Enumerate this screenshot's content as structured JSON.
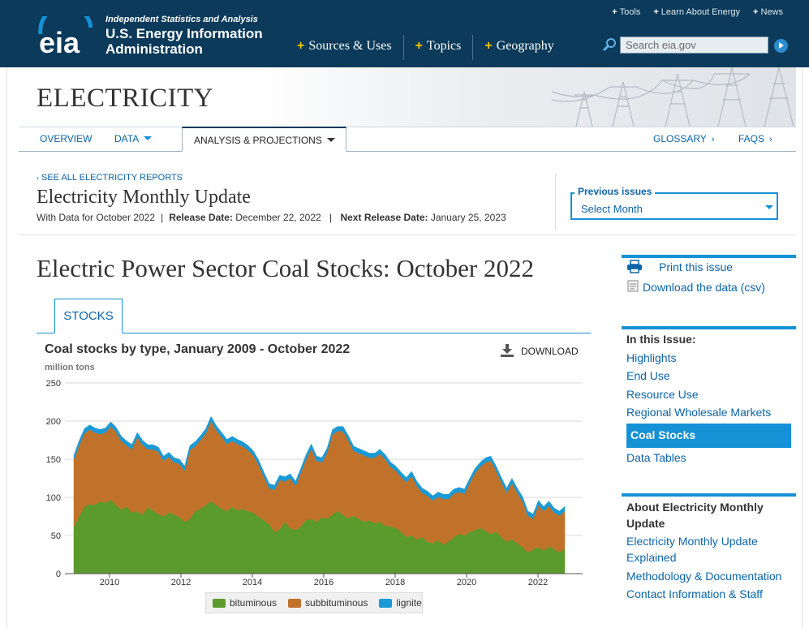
{
  "header": {
    "tagline": "Independent Statistics and Analysis",
    "org_line1": "U.S. Energy Information",
    "org_line2": "Administration",
    "logo_text": "eia",
    "util_links": [
      "Tools",
      "Learn About Energy",
      "News"
    ],
    "main_nav": [
      "Sources & Uses",
      "Topics",
      "Geography"
    ],
    "search_placeholder": "Search eia.gov"
  },
  "section": {
    "title": "ELECTRICITY",
    "subnav": {
      "overview": "OVERVIEW",
      "data": "DATA",
      "analysis": "ANALYSIS & PROJECTIONS",
      "glossary": "GLOSSARY",
      "faqs": "FAQS"
    }
  },
  "report": {
    "see_all": "SEE ALL ELECTRICITY REPORTS",
    "title": "Electricity Monthly Update",
    "data_for": "With Data for October 2022",
    "release_label": "Release Date:",
    "release_date": "December 22, 2022",
    "next_label": "Next Release Date:",
    "next_date": "January 25, 2023",
    "prev_issues_label": "Previous issues",
    "prev_issues_value": "Select Month"
  },
  "main": {
    "heading": "Electric Power Sector Coal Stocks: October 2022",
    "tab": "STOCKS",
    "download_label": "DOWNLOAD"
  },
  "chart_data": {
    "type": "area",
    "stacked": true,
    "title": "Coal stocks by type, January 2009 - October 2022",
    "ylabel": "million tons",
    "ylim": [
      0,
      250
    ],
    "yticks": [
      0,
      50,
      100,
      150,
      200,
      250
    ],
    "xticks": [
      "2010",
      "2012",
      "2014",
      "2016",
      "2018",
      "2020",
      "2022"
    ],
    "x_start": 2009.0,
    "x_end": 2022.75,
    "x_range": [
      2008.75,
      2023.25
    ],
    "grid": true,
    "legend_position": "bottom",
    "colors": {
      "bituminous": "#5b9a2d",
      "subbituminous": "#c0722b",
      "lignite": "#1a9ad6"
    },
    "series": [
      {
        "name": "bituminous",
        "values": [
          62,
          75,
          88,
          91,
          90,
          95,
          93,
          97,
          90,
          84,
          88,
          80,
          82,
          77,
          87,
          83,
          78,
          75,
          80,
          78,
          74,
          68,
          72,
          82,
          85,
          90,
          95,
          90,
          85,
          82,
          88,
          83,
          85,
          82,
          80,
          75,
          70,
          65,
          55,
          58,
          68,
          60,
          57,
          62,
          70,
          72,
          68,
          74,
          72,
          78,
          82,
          77,
          73,
          76,
          72,
          68,
          70,
          66,
          68,
          63,
          62,
          60,
          55,
          48,
          50,
          45,
          48,
          42,
          40,
          44,
          38,
          42,
          48,
          52,
          50,
          55,
          57,
          60,
          56,
          52,
          55,
          48,
          42,
          45,
          40,
          35,
          28,
          32,
          35,
          30,
          36,
          32,
          28,
          33
        ]
      },
      {
        "name": "subbituminous",
        "values": [
          88,
          93,
          96,
          98,
          95,
          88,
          92,
          96,
          96,
          90,
          80,
          83,
          97,
          92,
          76,
          80,
          82,
          73,
          73,
          68,
          70,
          67,
          90,
          85,
          90,
          94,
          105,
          98,
          94,
          88,
          86,
          87,
          82,
          80,
          75,
          68,
          57,
          47,
          55,
          65,
          53,
          65,
          58,
          70,
          80,
          92,
          80,
          72,
          87,
          105,
          105,
          110,
          102,
          85,
          86,
          87,
          82,
          86,
          89,
          87,
          78,
          75,
          72,
          72,
          78,
          70,
          58,
          60,
          56,
          57,
          60,
          56,
          57,
          55,
          55,
          64,
          75,
          80,
          90,
          96,
          80,
          72,
          64,
          74,
          66,
          60,
          48,
          40,
          55,
          52,
          53,
          48,
          48,
          49
        ]
      },
      {
        "name": "lignite",
        "values": [
          5,
          6,
          6,
          6,
          6,
          6,
          6,
          6,
          6,
          6,
          6,
          6,
          6,
          6,
          6,
          6,
          6,
          6,
          6,
          6,
          6,
          6,
          6,
          6,
          6,
          6,
          6,
          6,
          6,
          6,
          6,
          6,
          6,
          6,
          6,
          6,
          6,
          6,
          6,
          6,
          6,
          6,
          6,
          6,
          6,
          6,
          6,
          6,
          6,
          6,
          6,
          6,
          6,
          6,
          6,
          6,
          6,
          6,
          6,
          6,
          6,
          6,
          6,
          6,
          6,
          6,
          6,
          6,
          6,
          6,
          6,
          6,
          6,
          6,
          6,
          6,
          6,
          6,
          6,
          6,
          6,
          6,
          6,
          6,
          6,
          6,
          6,
          6,
          6,
          6,
          6,
          6,
          6,
          6
        ]
      }
    ]
  },
  "sidebar": {
    "print": "Print this issue",
    "download_csv": "Download the data (csv)",
    "in_this_issue": "In this Issue:",
    "issue_links": [
      "Highlights",
      "End Use",
      "Resource Use",
      "Regional Wholesale Markets"
    ],
    "active_link": "Coal Stocks",
    "data_tables": "Data Tables",
    "about_heading": "About Electricity Monthly Update",
    "about_links": [
      "Electricity Monthly Update Explained",
      "Methodology & Documentation",
      "Contact Information & Staff"
    ]
  }
}
